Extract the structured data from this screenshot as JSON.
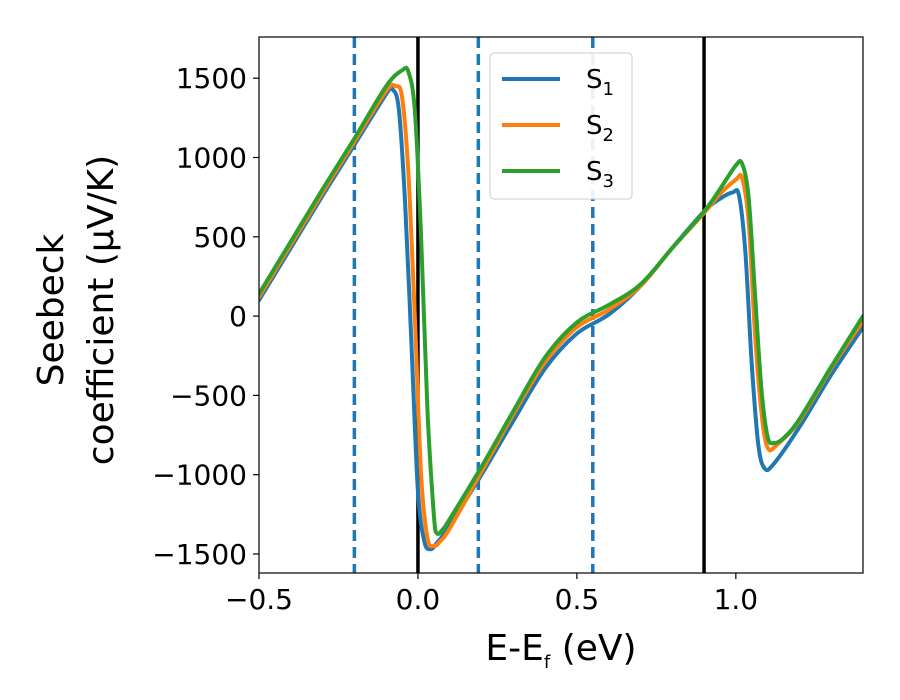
{
  "chart_data": {
    "type": "line",
    "title": "",
    "xlabel": "E-E_f (eV)",
    "xlabel_main": "E-E",
    "xlabel_sub": "f",
    "xlabel_unit": " (eV)",
    "ylabel_line1": "Seebeck",
    "ylabel_line2": "coefficient  (μV/K)",
    "xlim": [
      -0.5,
      1.4
    ],
    "ylim": [
      -1620,
      1760
    ],
    "xticks": [
      -0.5,
      0.0,
      0.5,
      1.0
    ],
    "xtick_labels": [
      "−0.5",
      "0.0",
      "0.5",
      "1.0"
    ],
    "yticks": [
      -1500,
      -1000,
      -500,
      0,
      500,
      1000,
      1500
    ],
    "ytick_labels": [
      "−1500",
      "−1000",
      "−500",
      "0",
      "500",
      "1000",
      "1500"
    ],
    "vlines_solid": [
      0.0,
      0.9
    ],
    "vlines_dashed": [
      -0.2,
      0.19,
      0.55
    ],
    "legend_position": "top-center",
    "series": [
      {
        "name": "S1",
        "label_main": "S",
        "label_sub": "1",
        "color": "#1f77b4",
        "x": [
          -0.5,
          -0.4,
          -0.3,
          -0.2,
          -0.1,
          -0.08,
          -0.06,
          -0.04,
          -0.02,
          0.0,
          0.02,
          0.04,
          0.06,
          0.08,
          0.1,
          0.2,
          0.3,
          0.4,
          0.5,
          0.6,
          0.7,
          0.8,
          0.9,
          0.95,
          0.99,
          1.01,
          1.03,
          1.05,
          1.07,
          1.09,
          1.12,
          1.2,
          1.3,
          1.4
        ],
        "y": [
          100,
          430,
          760,
          1080,
          1400,
          1430,
          1300,
          700,
          -200,
          -1100,
          -1420,
          -1470,
          -1430,
          -1380,
          -1320,
          -1000,
          -660,
          -330,
          -110,
          10,
          190,
          430,
          660,
          740,
          780,
          760,
          400,
          -300,
          -800,
          -960,
          -930,
          -700,
          -370,
          -70
        ]
      },
      {
        "name": "S2",
        "label_main": "S",
        "label_sub": "2",
        "color": "#ff7f0e",
        "x": [
          -0.5,
          -0.4,
          -0.3,
          -0.2,
          -0.1,
          -0.07,
          -0.05,
          -0.03,
          -0.01,
          0.01,
          0.03,
          0.05,
          0.07,
          0.1,
          0.2,
          0.3,
          0.4,
          0.5,
          0.6,
          0.7,
          0.8,
          0.9,
          0.95,
          1.0,
          1.02,
          1.04,
          1.06,
          1.08,
          1.1,
          1.13,
          1.2,
          1.3,
          1.4
        ],
        "y": [
          120,
          450,
          780,
          1100,
          1420,
          1450,
          1380,
          900,
          0,
          -1000,
          -1400,
          -1450,
          -1420,
          -1340,
          -980,
          -620,
          -290,
          -70,
          40,
          190,
          430,
          650,
          770,
          860,
          870,
          600,
          -100,
          -600,
          -830,
          -810,
          -660,
          -330,
          -30
        ]
      },
      {
        "name": "S3",
        "label_main": "S",
        "label_sub": "3",
        "color": "#2ca02c",
        "x": [
          -0.5,
          -0.4,
          -0.3,
          -0.2,
          -0.1,
          -0.05,
          -0.03,
          -0.01,
          0.01,
          0.03,
          0.05,
          0.06,
          0.08,
          0.1,
          0.2,
          0.3,
          0.4,
          0.5,
          0.6,
          0.7,
          0.8,
          0.9,
          0.95,
          1.0,
          1.02,
          1.04,
          1.06,
          1.08,
          1.1,
          1.12,
          1.15,
          1.2,
          1.3,
          1.4
        ],
        "y": [
          140,
          470,
          800,
          1120,
          1450,
          1550,
          1540,
          1300,
          500,
          -600,
          -1250,
          -1370,
          -1340,
          -1280,
          -950,
          -600,
          -260,
          -40,
          70,
          200,
          430,
          660,
          800,
          950,
          960,
          750,
          150,
          -450,
          -760,
          -800,
          -770,
          -650,
          -320,
          0
        ]
      }
    ]
  }
}
